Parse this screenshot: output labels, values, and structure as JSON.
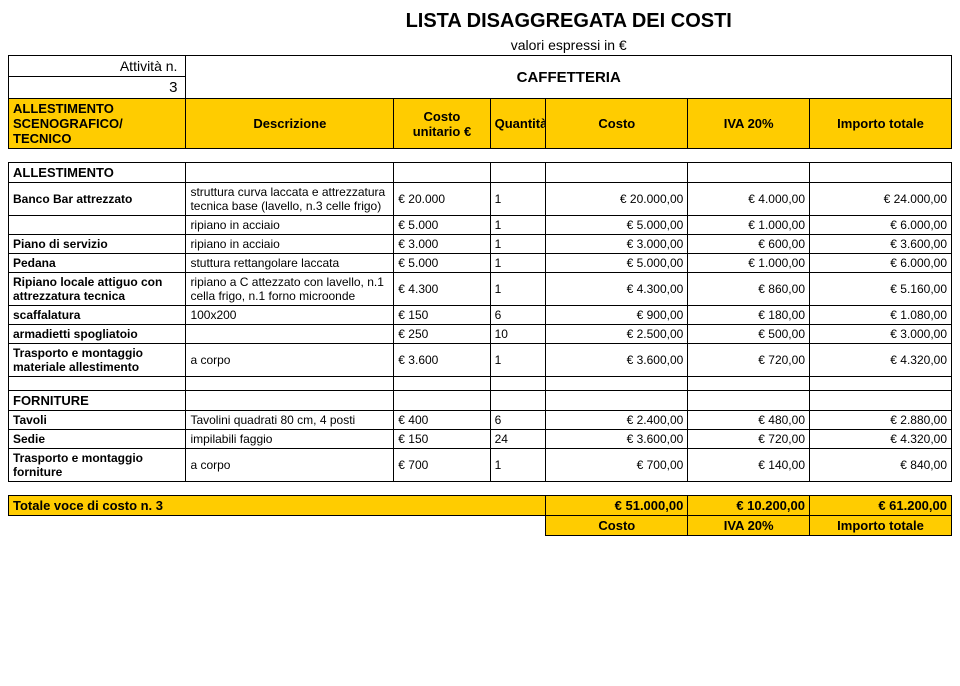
{
  "title": "LISTA DISAGGREGATA DEI COSTI",
  "subtitle": "valori espressi in €",
  "attivita_label": "Attività n.",
  "attivita_number": "3",
  "regione_name": "CAFFETTERIA",
  "headers": {
    "c1": "ALLESTIMENTO SCENOGRAFICO/ TECNICO",
    "c2": "Descrizione",
    "c3": "Costo unitario €",
    "c4": "Quantità",
    "c5": "Costo",
    "c6": "IVA 20%",
    "c7": "Importo totale"
  },
  "section1": "ALLESTIMENTO",
  "rows1": [
    {
      "c1": "Banco Bar attrezzato",
      "c2": "struttura curva laccata e attrezzatura tecnica base (lavello, n.3 celle frigo)",
      "c3": "€ 20.000",
      "c4": "1",
      "c5": "€      20.000,00",
      "c6": "€    4.000,00",
      "c7": "€      24.000,00"
    },
    {
      "c1": "",
      "c2": "ripiano in acciaio",
      "c3": "€ 5.000",
      "c4": "1",
      "c5": "€        5.000,00",
      "c6": "€    1.000,00",
      "c7": "€        6.000,00"
    },
    {
      "c1": "Piano di servizio",
      "c2": "ripiano in acciaio",
      "c3": "€ 3.000",
      "c4": "1",
      "c5": "€        3.000,00",
      "c6": "€       600,00",
      "c7": "€        3.600,00"
    },
    {
      "c1": "Pedana",
      "c2": "stuttura rettangolare laccata",
      "c3": "€ 5.000",
      "c4": "1",
      "c5": "€        5.000,00",
      "c6": "€    1.000,00",
      "c7": "€        6.000,00"
    },
    {
      "c1": "Ripiano locale attiguo con attrezzatura tecnica",
      "c2": "ripiano a C attezzato con lavello, n.1 cella frigo, n.1 forno microonde",
      "c3": "€ 4.300",
      "c4": "1",
      "c5": "€        4.300,00",
      "c6": "€       860,00",
      "c7": "€        5.160,00"
    },
    {
      "c1": "scaffalatura",
      "c2": "100x200",
      "c3": "€ 150",
      "c4": "6",
      "c5": "€           900,00",
      "c6": "€       180,00",
      "c7": "€        1.080,00"
    },
    {
      "c1": "armadietti spogliatoio",
      "c2": "",
      "c3": "€ 250",
      "c4": "10",
      "c5": "€        2.500,00",
      "c6": "€       500,00",
      "c7": "€        3.000,00"
    },
    {
      "c1": "Trasporto e montaggio materiale allestimento",
      "c2": "a corpo",
      "c3": "€ 3.600",
      "c4": "1",
      "c5": "€        3.600,00",
      "c6": "€       720,00",
      "c7": "€        4.320,00"
    }
  ],
  "section2": "FORNITURE",
  "rows2": [
    {
      "c1": "Tavoli",
      "c2": "Tavolini quadrati 80 cm, 4 posti",
      "c3": "€ 400",
      "c4": "6",
      "c5": "€        2.400,00",
      "c6": "€       480,00",
      "c7": "€        2.880,00"
    },
    {
      "c1": "Sedie",
      "c2": "impilabili faggio",
      "c3": "€ 150",
      "c4": "24",
      "c5": "€        3.600,00",
      "c6": "€       720,00",
      "c7": "€        4.320,00"
    },
    {
      "c1": "Trasporto e montaggio forniture",
      "c2": "a corpo",
      "c3": "€ 700",
      "c4": "1",
      "c5": "€           700,00",
      "c6": "€       140,00",
      "c7": "€           840,00"
    }
  ],
  "total": {
    "label": "Totale voce di costo n. 3",
    "c5": "€      51.000,00",
    "c6": "€  10.200,00",
    "c7": "€      61.200,00"
  },
  "footer": {
    "c5": "Costo",
    "c6": "IVA 20%",
    "c7": "Importo totale"
  },
  "colors": {
    "highlight": "#ffcc00"
  }
}
